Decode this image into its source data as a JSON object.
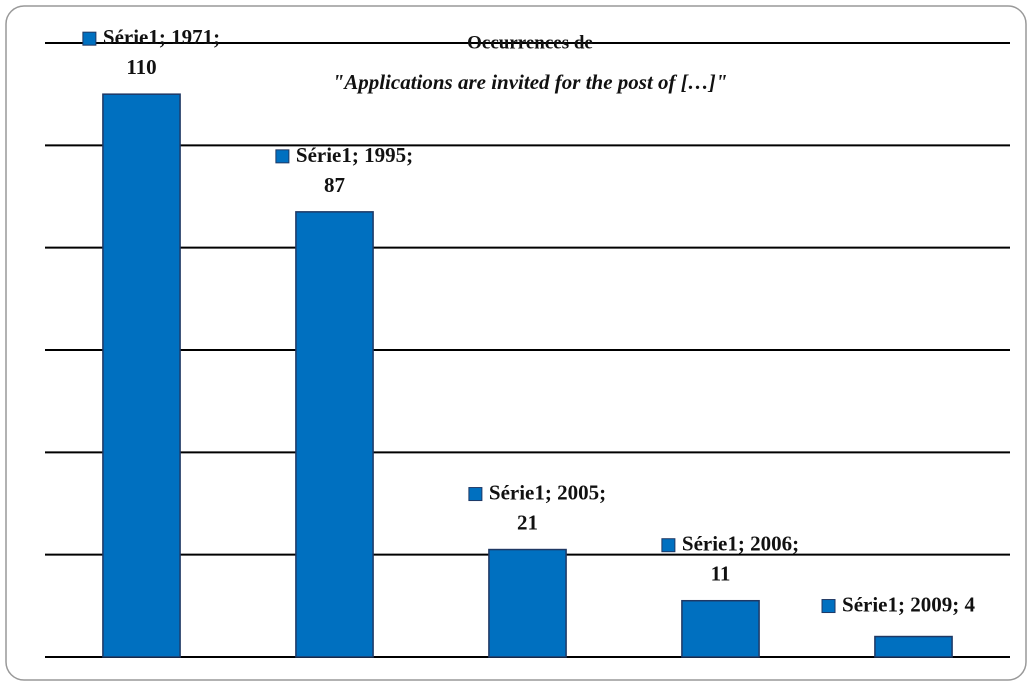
{
  "chart_data": {
    "type": "bar",
    "title": "Occurrences de",
    "subtitle": "\"Applications are invited for the post of […]\"",
    "categories": [
      "1971",
      "1995",
      "2005",
      "2006",
      "2009"
    ],
    "series": [
      {
        "name": "Série1",
        "color": "#0070c0",
        "values": [
          110,
          87,
          21,
          11,
          4
        ]
      }
    ],
    "value_labels": [
      "Série1; 1971; 110",
      "Série1; 1995; 87",
      "Série1; 2005; 21",
      "Série1; 2006; 11",
      "Série1; 2009; 4"
    ],
    "ylim": [
      0,
      120
    ],
    "yticks": [
      0,
      20,
      40,
      60,
      80,
      100,
      120
    ],
    "grid": true
  }
}
